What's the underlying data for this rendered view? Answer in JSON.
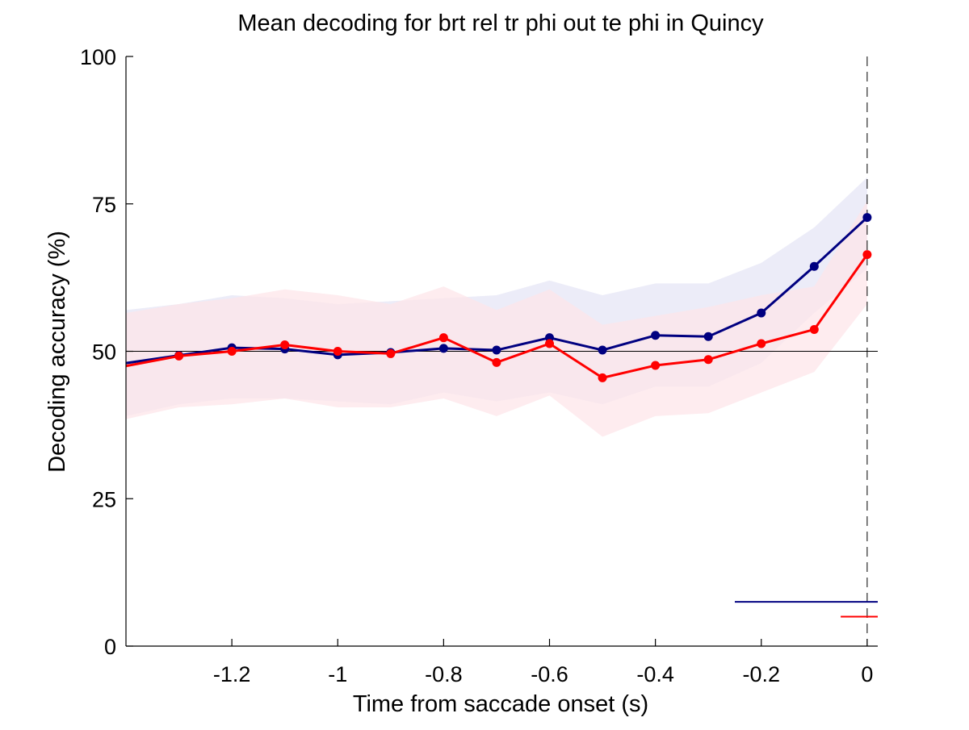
{
  "chart_data": {
    "type": "line",
    "title": "Mean decoding for brt rel tr phi out te phi in  Quincy",
    "xlabel": "Time from saccade onset (s)",
    "ylabel": "Decoding accuracy (%)",
    "xlim": [
      -1.4,
      0.02
    ],
    "ylim": [
      0,
      100
    ],
    "xticks": [
      -1.2,
      -1,
      -0.8,
      -0.6,
      -0.4,
      -0.2,
      0
    ],
    "xtick_labels": [
      "-1.2",
      "-1",
      "-0.8",
      "-0.6",
      "-0.4",
      "-0.2",
      "0"
    ],
    "yticks": [
      0,
      25,
      50,
      75,
      100
    ],
    "ytick_labels": [
      "0",
      "25",
      "50",
      "75",
      "100"
    ],
    "grid": false,
    "x": [
      -1.4,
      -1.3,
      -1.2,
      -1.1,
      -1.0,
      -0.9,
      -0.8,
      -0.7,
      -0.6,
      -0.5,
      -0.4,
      -0.3,
      -0.2,
      -0.1,
      0.0
    ],
    "series": [
      {
        "color": "#000080",
        "band_color": "#e6e6f5",
        "values": [
          48.0,
          49.3,
          50.6,
          50.4,
          49.4,
          49.8,
          50.5,
          50.2,
          52.3,
          50.2,
          52.7,
          52.5,
          56.5,
          64.4,
          72.7
        ],
        "lower": [
          39.0,
          41.0,
          42.0,
          42.0,
          41.5,
          41.0,
          43.0,
          41.5,
          43.0,
          41.0,
          44.0,
          44.0,
          48.0,
          56.5,
          64.0
        ],
        "upper": [
          57.0,
          58.0,
          59.5,
          59.0,
          58.0,
          58.5,
          59.0,
          59.5,
          62.0,
          59.5,
          61.5,
          61.5,
          65.0,
          71.0,
          79.5
        ]
      },
      {
        "color": "#ff0000",
        "band_color": "#fde6ea",
        "values": [
          47.5,
          49.2,
          50.0,
          51.1,
          50.0,
          49.6,
          52.3,
          48.1,
          51.3,
          45.5,
          47.6,
          48.6,
          51.3,
          53.7,
          66.4
        ],
        "lower": [
          38.5,
          40.5,
          41.0,
          42.0,
          40.5,
          40.5,
          42.0,
          39.0,
          42.5,
          35.5,
          39.0,
          39.5,
          43.0,
          46.5,
          58.0
        ],
        "upper": [
          56.5,
          58.0,
          59.0,
          60.5,
          59.5,
          58.0,
          61.0,
          57.0,
          60.5,
          54.5,
          56.0,
          57.5,
          59.5,
          61.0,
          75.5
        ]
      }
    ],
    "reference_lines": {
      "horizontal_y": 50,
      "vertical_x": 0
    },
    "significance_bars": [
      {
        "color": "#000080",
        "y": 7.5,
        "x_start": -0.25,
        "x_end": 0.02
      },
      {
        "color": "#ff0000",
        "y": 5.0,
        "x_start": -0.05,
        "x_end": 0.02
      }
    ]
  }
}
